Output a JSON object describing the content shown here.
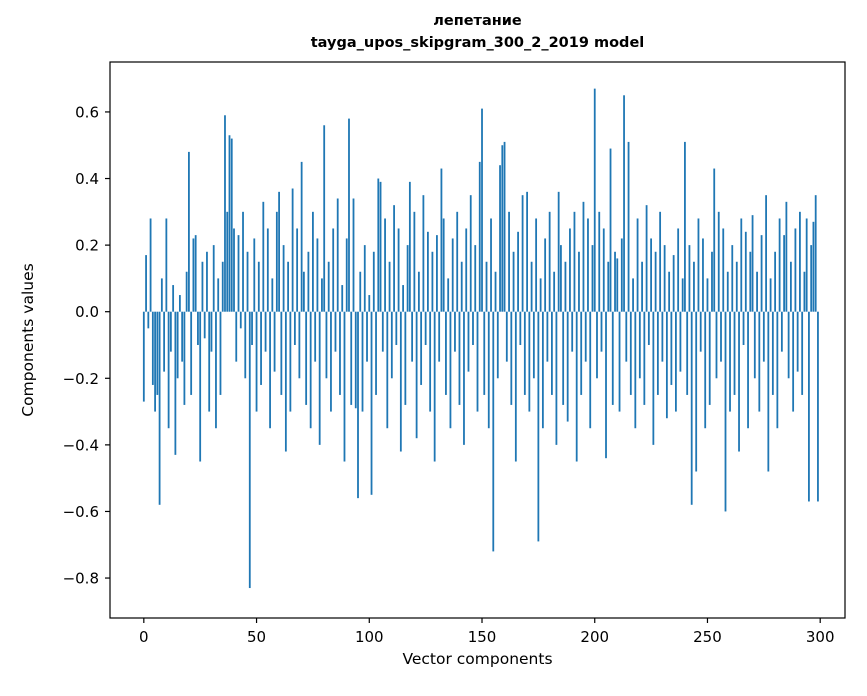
{
  "chart_data": {
    "type": "bar",
    "title": "лепетание",
    "subtitle": "tayga_upos_skipgram_300_2_2019 model",
    "xlabel": "Vector components",
    "ylabel": "Components values",
    "legend": null,
    "grid": false,
    "bar_color": "#1f77b4",
    "n_components": 300,
    "xlim": [
      -15,
      311
    ],
    "ylim": [
      -0.92,
      0.75
    ],
    "xticks": [
      0,
      50,
      100,
      150,
      200,
      250,
      300
    ],
    "ytick_values": [
      -0.8,
      -0.6,
      -0.4,
      -0.2,
      0.0,
      0.2,
      0.4,
      0.6
    ],
    "ytick_labels": [
      "−0.8",
      "−0.6",
      "−0.4",
      "−0.2",
      "0.0",
      "0.2",
      "0.4",
      "0.6"
    ],
    "values": [
      -0.27,
      0.17,
      -0.05,
      0.28,
      -0.22,
      -0.3,
      -0.25,
      -0.58,
      0.1,
      -0.18,
      0.28,
      -0.35,
      -0.12,
      0.08,
      -0.43,
      -0.2,
      0.05,
      -0.15,
      -0.28,
      0.12,
      0.48,
      -0.25,
      0.22,
      0.23,
      -0.1,
      -0.45,
      0.15,
      -0.08,
      0.18,
      -0.3,
      -0.12,
      0.2,
      -0.35,
      0.1,
      -0.25,
      0.15,
      0.59,
      0.3,
      0.53,
      0.52,
      0.25,
      -0.15,
      0.23,
      -0.05,
      0.3,
      -0.2,
      0.18,
      -0.83,
      -0.1,
      0.22,
      -0.3,
      0.15,
      -0.22,
      0.33,
      -0.12,
      0.25,
      -0.35,
      0.1,
      -0.18,
      0.3,
      0.36,
      -0.25,
      0.2,
      -0.42,
      0.15,
      -0.3,
      0.37,
      -0.1,
      0.25,
      -0.2,
      0.45,
      0.12,
      -0.28,
      0.18,
      -0.35,
      0.3,
      -0.15,
      0.22,
      -0.4,
      0.1,
      0.56,
      -0.2,
      0.15,
      -0.3,
      0.25,
      -0.12,
      0.34,
      -0.25,
      0.08,
      -0.45,
      0.22,
      0.58,
      -0.28,
      0.34,
      -0.29,
      -0.56,
      0.12,
      -0.3,
      0.2,
      -0.15,
      0.05,
      -0.55,
      0.18,
      -0.25,
      0.4,
      0.39,
      -0.12,
      0.28,
      -0.35,
      0.15,
      -0.2,
      0.32,
      -0.1,
      0.25,
      -0.42,
      0.08,
      -0.28,
      0.2,
      0.39,
      -0.15,
      0.3,
      -0.38,
      0.12,
      -0.22,
      0.35,
      -0.1,
      0.24,
      -0.3,
      0.18,
      -0.45,
      0.23,
      -0.15,
      0.43,
      0.28,
      -0.25,
      0.1,
      -0.35,
      0.22,
      -0.12,
      0.3,
      -0.28,
      0.15,
      -0.4,
      0.25,
      -0.18,
      0.35,
      -0.1,
      0.2,
      -0.3,
      0.45,
      0.61,
      -0.25,
      0.15,
      -0.35,
      0.28,
      -0.72,
      0.12,
      -0.2,
      0.44,
      0.5,
      0.51,
      -0.15,
      0.3,
      -0.28,
      0.18,
      -0.45,
      0.24,
      -0.1,
      0.35,
      -0.25,
      0.36,
      -0.3,
      0.15,
      -0.2,
      0.28,
      -0.69,
      0.1,
      -0.35,
      0.22,
      -0.15,
      0.3,
      -0.25,
      0.12,
      -0.4,
      0.36,
      0.2,
      -0.28,
      0.15,
      -0.33,
      0.25,
      -0.12,
      0.3,
      -0.45,
      0.18,
      -0.25,
      0.33,
      -0.15,
      0.28,
      -0.35,
      0.2,
      0.67,
      -0.2,
      0.3,
      -0.12,
      0.25,
      -0.44,
      0.15,
      0.49,
      -0.28,
      0.18,
      0.16,
      -0.3,
      0.22,
      0.65,
      -0.15,
      0.51,
      -0.25,
      0.1,
      -0.35,
      0.28,
      -0.2,
      0.15,
      -0.28,
      0.32,
      -0.1,
      0.22,
      -0.4,
      0.18,
      -0.25,
      0.3,
      -0.15,
      0.2,
      -0.32,
      0.12,
      -0.22,
      0.17,
      -0.3,
      0.25,
      -0.18,
      0.1,
      0.51,
      -0.25,
      0.2,
      -0.58,
      0.15,
      -0.48,
      0.28,
      -0.12,
      0.22,
      -0.35,
      0.1,
      -0.28,
      0.18,
      0.43,
      -0.2,
      0.3,
      -0.15,
      0.25,
      -0.6,
      0.12,
      -0.3,
      0.2,
      -0.25,
      0.15,
      -0.42,
      0.28,
      -0.1,
      0.24,
      -0.35,
      0.18,
      0.29,
      -0.2,
      0.12,
      -0.3,
      0.23,
      -0.15,
      0.35,
      -0.48,
      0.1,
      -0.25,
      0.18,
      -0.35,
      0.28,
      -0.12,
      0.23,
      0.33,
      -0.2,
      0.15,
      -0.3,
      0.25,
      -0.18,
      0.3,
      -0.25,
      0.12,
      0.28,
      -0.57,
      0.2,
      0.27,
      0.35,
      -0.57
    ]
  }
}
